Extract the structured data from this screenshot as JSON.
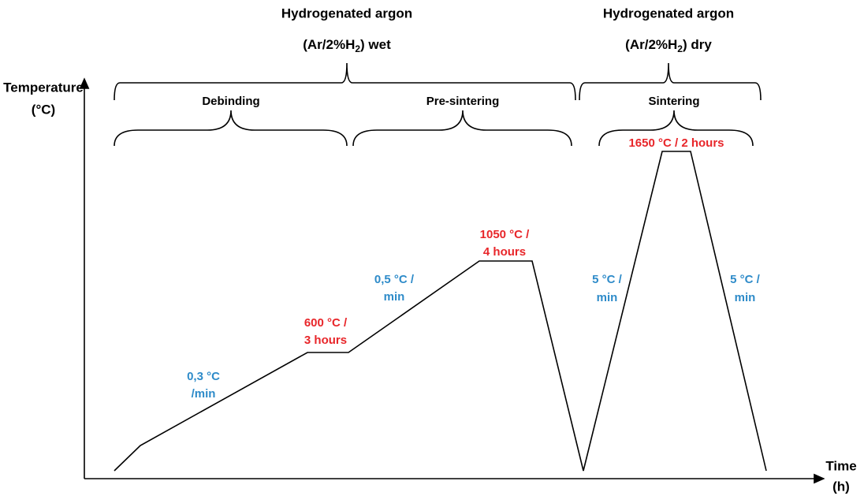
{
  "atmospheres": [
    {
      "title": "Hydrogenated argon",
      "formula": {
        "prefix": "(Ar/2%H",
        "subscript": "2",
        "suffix": ")  wet"
      }
    },
    {
      "title": "Hydrogenated argon",
      "formula": {
        "prefix": "(Ar/2%H",
        "subscript": "2",
        "suffix": ")  dry"
      }
    }
  ],
  "axes": {
    "y_label": [
      "Temperature",
      "(°C)"
    ],
    "x_label": [
      "Time",
      "(h)"
    ]
  },
  "stages": [
    "Debinding",
    "Pre-sintering",
    "Sintering"
  ],
  "annotations": {
    "hold_600": [
      "600 °C /",
      "3 hours"
    ],
    "hold_1050": [
      "1050 °C /",
      "4 hours"
    ],
    "hold_1650": "1650 °C / 2 hours",
    "rate_1": [
      "0,3 °C",
      "/min"
    ],
    "rate_2": [
      "0,5 °C /",
      "min"
    ],
    "rate_3": [
      "5 °C /",
      "min"
    ],
    "rate_4": [
      "5 °C /",
      "min"
    ]
  }
}
